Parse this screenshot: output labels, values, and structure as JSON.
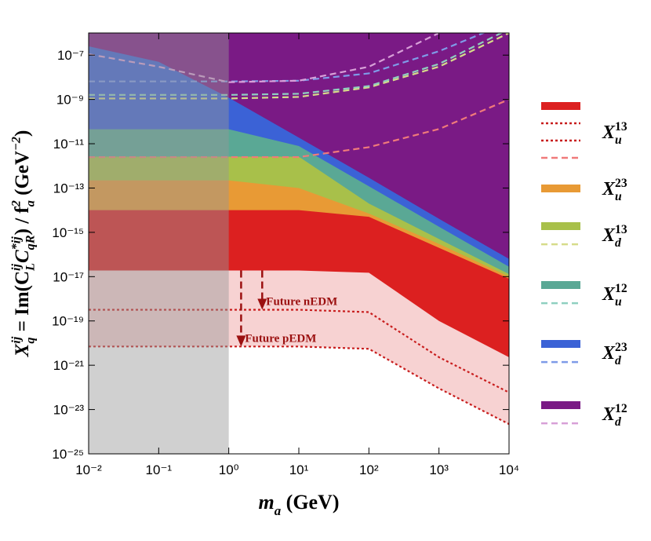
{
  "chart_data": {
    "type": "area",
    "log_x": true,
    "log_y": true,
    "x": [
      0.01,
      0.1,
      1,
      10,
      100,
      1000,
      10000
    ],
    "xlim": [
      0.01,
      10000
    ],
    "ylim": [
      1e-25,
      1e-06
    ],
    "xticks": [
      {
        "value": 0.01,
        "label": "10⁻²"
      },
      {
        "value": 0.1,
        "label": "10⁻¹"
      },
      {
        "value": 1,
        "label": "10⁰"
      },
      {
        "value": 10,
        "label": "10¹"
      },
      {
        "value": 100,
        "label": "10²"
      },
      {
        "value": 1000,
        "label": "10³"
      },
      {
        "value": 10000,
        "label": "10⁴"
      }
    ],
    "yticks": [
      {
        "value": 1e-25,
        "label": "10⁻²⁵"
      },
      {
        "value": 1e-23,
        "label": "10⁻²³"
      },
      {
        "value": 1e-21,
        "label": "10⁻²¹"
      },
      {
        "value": 1e-19,
        "label": "10⁻¹⁹"
      },
      {
        "value": 1e-17,
        "label": "10⁻¹⁷"
      },
      {
        "value": 1e-15,
        "label": "10⁻¹⁵"
      },
      {
        "value": 1e-13,
        "label": "10⁻¹³"
      },
      {
        "value": 1e-11,
        "label": "10⁻¹¹"
      },
      {
        "value": 1e-09,
        "label": "10⁻⁹"
      },
      {
        "value": 1e-07,
        "label": "10⁻⁷"
      }
    ],
    "xlabel": [
      {
        "text": "m",
        "pos": "base"
      },
      {
        "text": "a",
        "pos": "sub"
      },
      {
        "text": " (GeV)",
        "pos": "base"
      }
    ],
    "ylabel": [
      {
        "text": "X",
        "pos": "base"
      },
      {
        "text": "q",
        "pos": "sub"
      },
      {
        "text": "ij",
        "pos": "sup"
      },
      {
        "text": " = Im(C",
        "pos": "base"
      },
      {
        "text": "L",
        "pos": "sub"
      },
      {
        "text": "ij",
        "pos": "sup"
      },
      {
        "text": "C",
        "pos": "base"
      },
      {
        "text": "qR",
        "pos": "sub"
      },
      {
        "text": "*ij",
        "pos": "sup"
      },
      {
        "text": ") / f",
        "pos": "base"
      },
      {
        "text": "a",
        "pos": "sub"
      },
      {
        "text": "2",
        "pos": "sup"
      },
      {
        "text": " (GeV",
        "pos": "base"
      },
      {
        "text": "−2",
        "pos": "sup"
      },
      {
        "text": ")",
        "pos": "base"
      }
    ],
    "shaded_x": [
      0.01,
      1
    ],
    "shaded_color": "rgba(150,150,150,0.45)",
    "series": [
      {
        "label": {
          "symbol": "X",
          "sub": "u",
          "sup": "13"
        },
        "color": "#dc2020",
        "values": [
          1.9e-17,
          1.9e-17,
          1.9e-17,
          1.9e-17,
          1.5e-17,
          1e-19,
          2.3e-21
        ],
        "projections": [
          {
            "color": "#c81e1e",
            "style": "dotted",
            "values": [
              3.2e-19,
              3.2e-19,
              3.2e-19,
              3.2e-19,
              2.5e-19,
              2.3e-21,
              5.9e-23
            ]
          },
          {
            "color": "#c81e1e",
            "style": "dotted",
            "fill": "#f7d2d2",
            "values": [
              7e-21,
              7e-21,
              7e-21,
              7e-21,
              5.5e-21,
              9e-23,
              2.2e-24
            ]
          },
          {
            "color": "#f07a7a",
            "style": "dashed",
            "values": [
              2.5e-12,
              2.5e-12,
              2.5e-12,
              2.5e-12,
              7e-12,
              4.6e-11,
              1e-09
            ]
          }
        ]
      },
      {
        "label": {
          "symbol": "X",
          "sub": "u",
          "sup": "23"
        },
        "color": "#e89a35",
        "values": [
          1e-14,
          1e-14,
          1e-14,
          1e-14,
          5e-15,
          2e-16,
          8e-18
        ],
        "projections": []
      },
      {
        "label": {
          "symbol": "X",
          "sub": "d",
          "sup": "13"
        },
        "color": "#a8c04a",
        "values": [
          2.2e-13,
          2.2e-13,
          2.2e-13,
          1e-13,
          7e-15,
          3e-16,
          1e-17
        ],
        "projections": [
          {
            "color": "#d6dc8a",
            "style": "dashed",
            "values": [
              1.1e-09,
              1.1e-09,
              1.1e-09,
              1.3e-09,
              3.5e-09,
              3e-08,
              1e-06
            ]
          }
        ]
      },
      {
        "label": {
          "symbol": "X",
          "sub": "u",
          "sup": "12"
        },
        "color": "#5aa895",
        "values": [
          2.6e-12,
          2.6e-12,
          2.6e-12,
          2.6e-12,
          2e-14,
          5e-16,
          1.3e-17
        ],
        "projections": [
          {
            "color": "#8fd0c0",
            "style": "dashed",
            "values": [
              1.6e-09,
              1.6e-09,
              1.6e-09,
              1.8e-09,
              4e-09,
              4e-08,
              1.5e-06
            ]
          }
        ]
      },
      {
        "label": {
          "symbol": "X",
          "sub": "d",
          "sup": "23"
        },
        "color": "#3b62d6",
        "values": [
          4.5e-11,
          4.5e-11,
          4.5e-11,
          7.9e-12,
          1.2e-13,
          1.8e-15,
          2.8e-17
        ],
        "projections": [
          {
            "color": "#7f9be8",
            "style": "dashed",
            "values": [
              6.5e-09,
              6.5e-09,
              6.5e-09,
              7e-09,
              1.5e-08,
              1.5e-07,
              3e-06
            ]
          }
        ]
      },
      {
        "label": {
          "symbol": "X",
          "sub": "d",
          "sup": "12"
        },
        "color": "#7a1a85",
        "values": [
          2.5e-07,
          5e-08,
          1.2e-09,
          1.9e-11,
          2.9e-13,
          4.1e-15,
          6.3e-17
        ],
        "projections": [
          {
            "color": "#d8a0d8",
            "style": "dashed",
            "values": [
              1.1e-07,
              3e-08,
              6e-09,
              7e-09,
              3e-08,
              1e-06,
              0.0001
            ]
          }
        ]
      }
    ],
    "annotations": [
      {
        "text": "Future nEDM",
        "x": 3,
        "y_from": 1.9e-17,
        "y_to": 3.2e-19,
        "color": "#9b1010"
      },
      {
        "text": "Future pEDM",
        "x": 1.5,
        "y_from": 1.9e-17,
        "y_to": 7e-21,
        "color": "#9b1010"
      }
    ]
  }
}
